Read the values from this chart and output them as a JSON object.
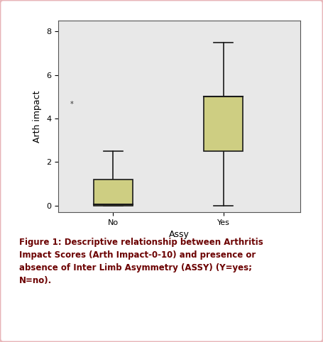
{
  "categories": [
    "No",
    "Yes"
  ],
  "boxes": [
    {
      "q1": 0.0,
      "median": 0.05,
      "q3": 1.2,
      "whislo": 0.0,
      "whishi": 2.5,
      "fliers": []
    },
    {
      "q1": 2.5,
      "median": 5.0,
      "q3": 5.0,
      "whislo": 0.0,
      "whishi": 7.5,
      "fliers": []
    }
  ],
  "box_color": "#c8c87a",
  "box_facecolor": "#cece82",
  "median_color": "#1a1a1a",
  "whisker_color": "#1a1a1a",
  "ylabel": "Arth impact",
  "xlabel": "Assy",
  "yticks": [
    0,
    2,
    4,
    6,
    8
  ],
  "ylim": [
    -0.3,
    8.5
  ],
  "bg_color": "#e8e8e8",
  "outer_border_color": "#e8b4b8",
  "figure_bg": "#ffffff",
  "caption": "Figure 1: Descriptive relationship between Arthritis\nImpact Scores (Arth Impact-0-10) and presence or\nabsence of Inter Limb Asymmetry (ASSY) (Y=yes;\nN=no).",
  "caption_color": "#6b0000",
  "caption_bold_parts": "Figure 1:"
}
